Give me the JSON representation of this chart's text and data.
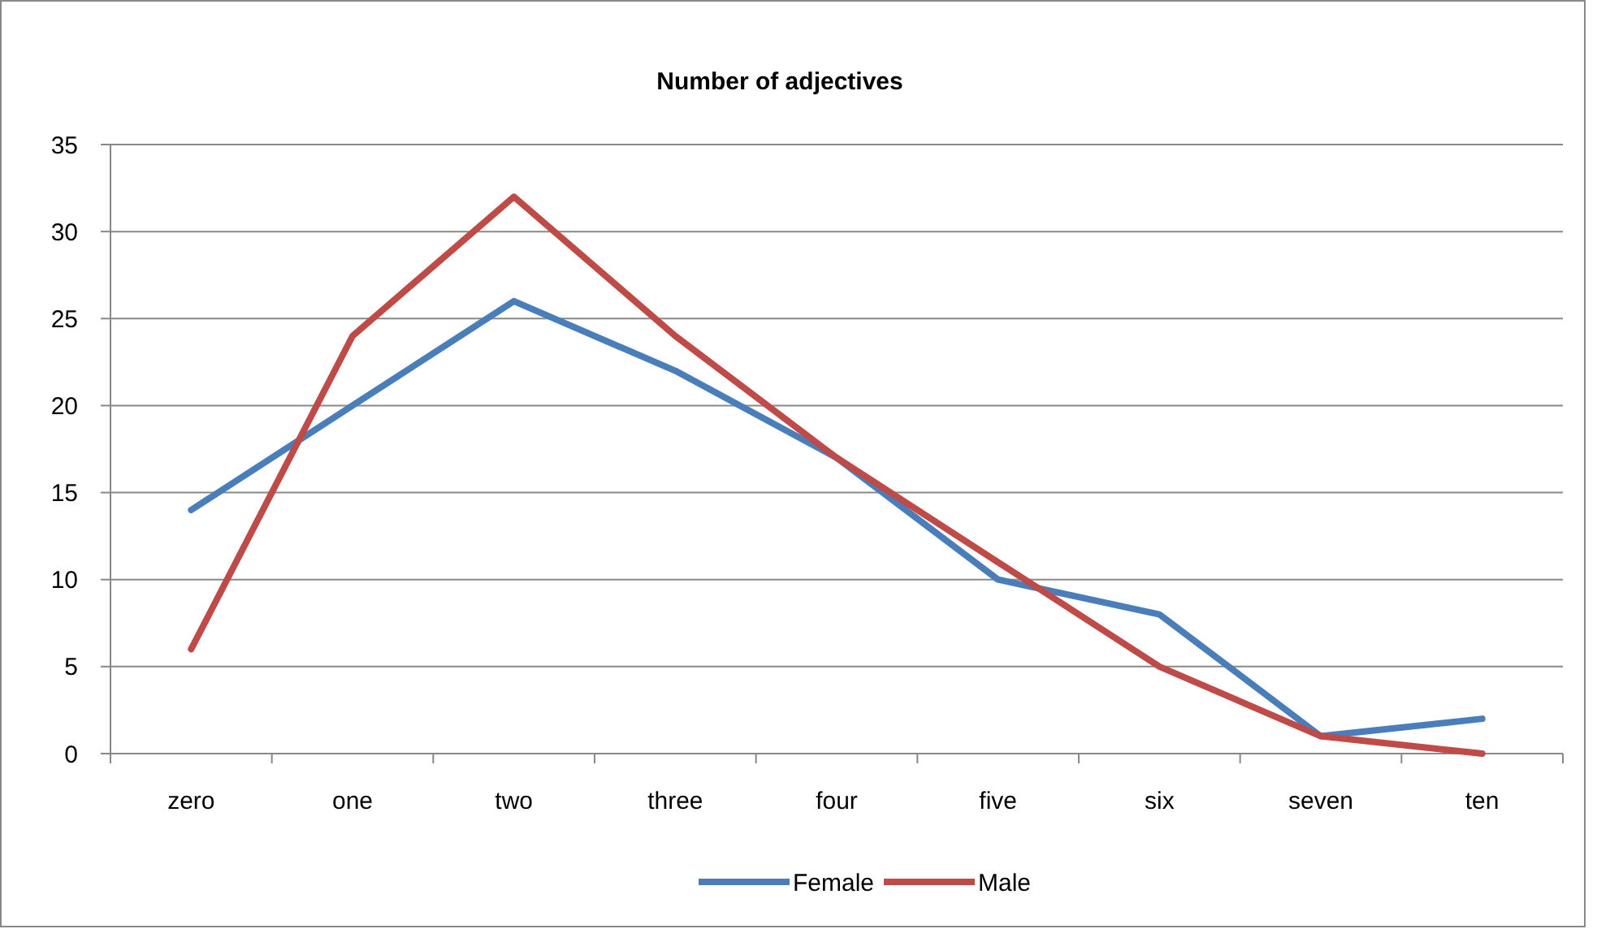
{
  "chart_data": {
    "type": "line",
    "title": "Number of adjectives",
    "categories": [
      "zero",
      "one",
      "two",
      "three",
      "four",
      "five",
      "six",
      "seven",
      "ten"
    ],
    "series": [
      {
        "name": "Female",
        "color": "#4a7ebb",
        "values": [
          14,
          20,
          26,
          22,
          17,
          10,
          8,
          1,
          2
        ]
      },
      {
        "name": "Male",
        "color": "#be4b48",
        "values": [
          6,
          24,
          32,
          24,
          17,
          11,
          5,
          1,
          0
        ]
      }
    ],
    "ylim": [
      0,
      35
    ],
    "yticks": [
      0,
      5,
      10,
      15,
      20,
      25,
      30,
      35
    ],
    "grid": "y",
    "legend": "bottom",
    "marker": "none",
    "line_style": "solid"
  }
}
